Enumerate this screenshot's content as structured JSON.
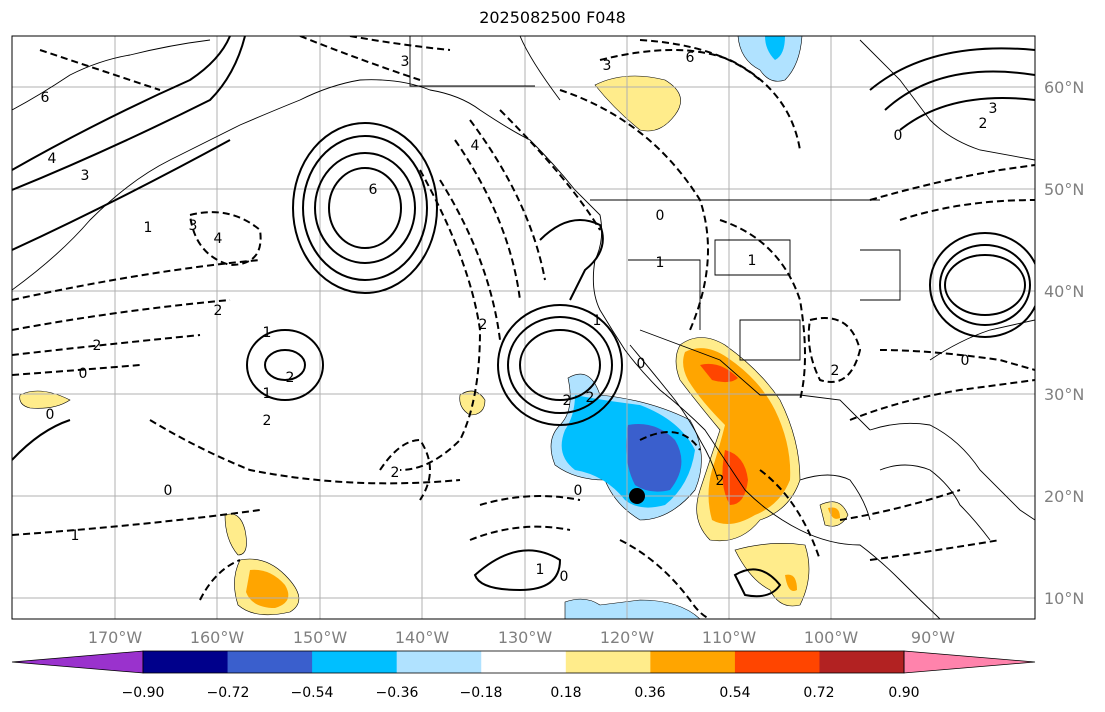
{
  "title": "2025082500 F048",
  "lon_labels": [
    "170°W",
    "160°W",
    "150°W",
    "140°W",
    "130°W",
    "120°W",
    "110°W",
    "100°W",
    "90°W"
  ],
  "lat_labels": [
    "60°N",
    "50°N",
    "40°N",
    "30°N",
    "20°N",
    "10°N"
  ],
  "colorbar": {
    "ticks": [
      "−0.90",
      "−0.72",
      "−0.54",
      "−0.36",
      "−0.18",
      "0.18",
      "0.36",
      "0.54",
      "0.72",
      "0.90"
    ],
    "colors": [
      "#9a32cd",
      "#00008b",
      "#3a5fcd",
      "#00bfff",
      "#b0e2ff",
      "#ffffff",
      "#ffec8b",
      "#ffa500",
      "#ff4500",
      "#b22222",
      "#ff83ac"
    ]
  },
  "contour_labels": [
    {
      "text": "3"
    },
    {
      "text": "6"
    },
    {
      "text": "3"
    },
    {
      "text": "4"
    },
    {
      "text": "1"
    },
    {
      "text": "3"
    },
    {
      "text": "4"
    },
    {
      "text": "6"
    },
    {
      "text": "4"
    },
    {
      "text": "2"
    },
    {
      "text": "1"
    },
    {
      "text": "2"
    },
    {
      "text": "0"
    },
    {
      "text": "2"
    },
    {
      "text": "1"
    },
    {
      "text": "2"
    },
    {
      "text": "0"
    },
    {
      "text": "2"
    },
    {
      "text": "2"
    },
    {
      "text": "0"
    },
    {
      "text": "1"
    },
    {
      "text": "0"
    },
    {
      "text": "1"
    },
    {
      "text": "1"
    },
    {
      "text": "2"
    },
    {
      "text": "0"
    },
    {
      "text": "3"
    },
    {
      "text": "2"
    },
    {
      "text": "0"
    },
    {
      "text": "0"
    },
    {
      "text": "2"
    },
    {
      "text": "1"
    },
    {
      "text": "0"
    },
    {
      "text": "1"
    },
    {
      "text": "0"
    },
    {
      "text": "6"
    },
    {
      "text": "3"
    },
    {
      "text": "2"
    },
    {
      "text": "2"
    },
    {
      "text": "4"
    }
  ],
  "marker": {
    "lon": -120,
    "lat": 20
  },
  "legend_title": ""
}
